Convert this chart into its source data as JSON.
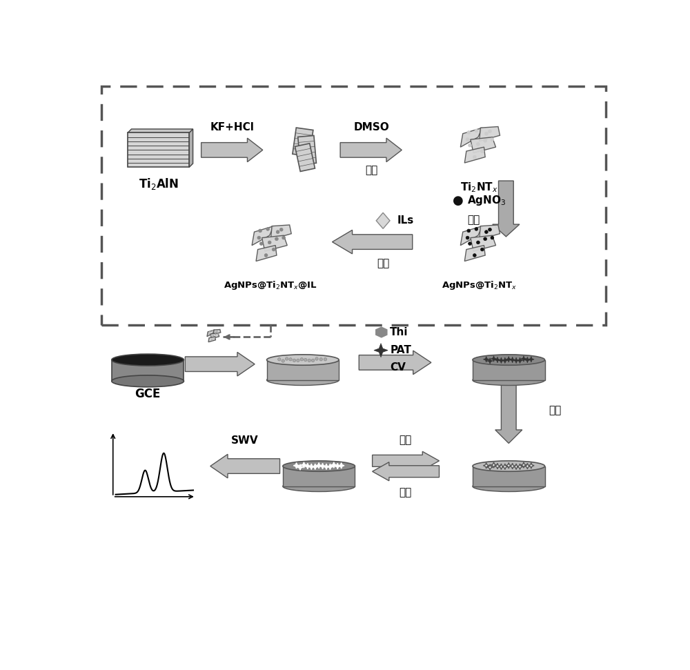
{
  "bg_color": "#ffffff",
  "labels": {
    "Ti2AlN": "Ti$_2$AlN",
    "Ti2NTx": "Ti$_2$NT$_x$",
    "AgNPs_Ti2NTx": "AgNPs@Ti$_2$NT$_x$",
    "AgNPs_Ti2NTx_IL": "AgNPs@Ti$_2$NT$_x$@IL",
    "KF_HCl": "KF+HCl",
    "DMSO": "DMSO",
    "ultrasound1": "超声",
    "AgNO3": "AgNO$_3$",
    "ultrasound2": "超声",
    "ILs": "ILs",
    "ultrasound3": "超声",
    "GCE": "GCE",
    "Thi": "Thi",
    "PAT": "PAT",
    "CV": "CV",
    "SWV": "SWV",
    "wash1": "洗脱",
    "wash2": "洗脱",
    "incubate": "孵育"
  }
}
